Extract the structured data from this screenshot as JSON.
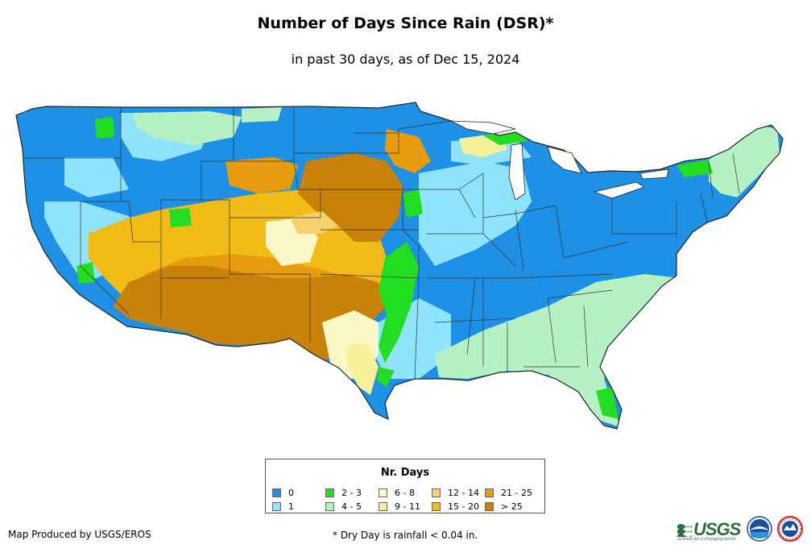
{
  "header": {
    "title": "Number of Days Since Rain (DSR)*",
    "subtitle": "in past 30 days, as of Dec 15, 2024"
  },
  "legend": {
    "title": "Nr. Days",
    "items": [
      {
        "label": "0",
        "color": "#1e90e6"
      },
      {
        "label": "1",
        "color": "#8fe3fb"
      },
      {
        "label": "2 - 3",
        "color": "#22dd22"
      },
      {
        "label": "4 - 5",
        "color": "#b5f1c3"
      },
      {
        "label": "6 - 8",
        "color": "#fbf8c8"
      },
      {
        "label": "9 - 11",
        "color": "#f9f09a"
      },
      {
        "label": "12 - 14",
        "color": "#f6d26e"
      },
      {
        "label": "15 - 20",
        "color": "#f1bb18"
      },
      {
        "label": "21 - 25",
        "color": "#e79c10"
      },
      {
        "label": "> 25",
        "color": "#c98209"
      }
    ]
  },
  "footer": {
    "credit": "Map Produced by USGS/EROS",
    "note": "* Dry Day is rainfall < 0.04 in."
  },
  "logos": {
    "usgs_text": "USGS",
    "usgs_tagline": "science for a changing world",
    "noaa_icon": "noaa-logo",
    "nws_icon": "nws-logo"
  }
}
